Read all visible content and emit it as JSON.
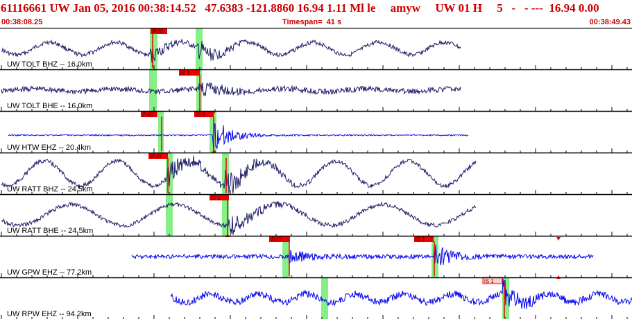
{
  "header": {
    "title": "61116661 UW Jan 05, 2016 00:38:14.52   47.6383 -121.8860 16.94 1.11 Ml le     amyw     UW 01 H     5   -   - ---  16.94 0.00",
    "start_time": "00:38:08.25",
    "timespan": "Timespan=  41 s",
    "end_time": "00:38:49.43"
  },
  "colors": {
    "header_text": "#cc0000",
    "trace_dark": "#1a1a66",
    "trace_blue": "#0000ee",
    "pick_red": "#ee0000",
    "pick_highlight": "#88ee88",
    "divider": "#000000"
  },
  "channels": [
    {
      "label": "UW TOLT BHZ -- 16.0km",
      "color_key": "trace_dark",
      "picks": [
        "iPd0"
      ]
    },
    {
      "label": "UW TOLT BHE -- 16.0km",
      "color_key": "trace_dark",
      "picks": [
        "iS 1"
      ]
    },
    {
      "label": "UW HTW EHZ -- 20.4km",
      "color_key": "trace_blue",
      "picks": [
        "iPd0",
        "iS 1"
      ]
    },
    {
      "label": "UW RATT BHZ -- 24.5km",
      "color_key": "trace_dark",
      "picks": [
        "iPd0"
      ]
    },
    {
      "label": "UW RATT BHE -- 24.5km",
      "color_key": "trace_dark",
      "picks": [
        "iS 1"
      ]
    },
    {
      "label": "UW GPW EHZ -- 77.2km",
      "color_key": "trace_blue",
      "picks": [
        "iPd0",
        "iS 1"
      ]
    },
    {
      "label": "UW RPW EHZ -- 94.2km",
      "color_key": "trace_blue",
      "picks": [
        "iS 1"
      ]
    }
  ]
}
